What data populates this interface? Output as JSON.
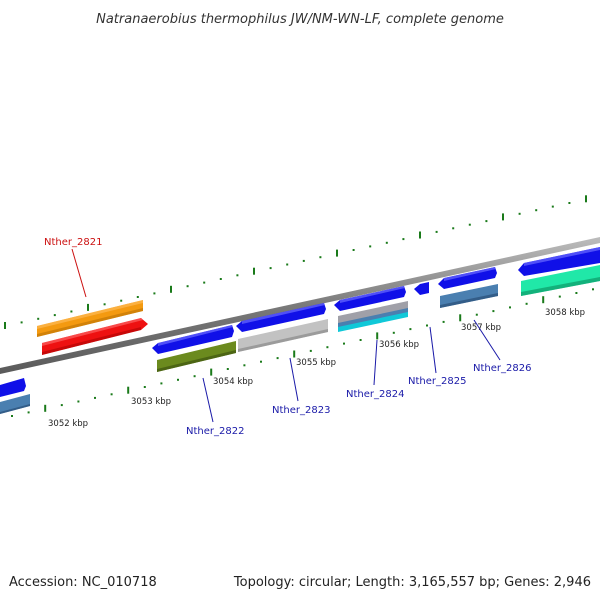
{
  "title": "Natranaerobius thermophilus JW/NM-WN-LF, complete genome",
  "footer": {
    "accession": "Accession: NC_010718",
    "summary": "Topology: circular; Length: 3,165,557 bp; Genes: 2,946"
  },
  "colors": {
    "backbone": "#8a8a8a",
    "tick": "#1a7a1a",
    "label_blue": "#1a1aa8",
    "label_red": "#cc1111",
    "gene_blue": "#1010e8",
    "gene_steel": "#4a7fb0",
    "gene_orange": "#f49a10",
    "gene_red": "#ee1111",
    "gene_olive": "#6b8a1e",
    "gene_gray": "#c2c2c2",
    "gene_cyan": "#10c8d8",
    "gene_teal": "#20e8a8"
  },
  "kbp_labels": [
    "3052 kbp",
    "3053 kbp",
    "3054 kbp",
    "3055 kbp",
    "3056 kbp",
    "3057 kbp",
    "3058 kbp"
  ],
  "gene_labels": [
    {
      "text": "Nther_2821",
      "color": "#cc1111"
    },
    {
      "text": "Nther_2822",
      "color": "#1a1aa8"
    },
    {
      "text": "Nther_2823",
      "color": "#1a1aa8"
    },
    {
      "text": "Nther_2824",
      "color": "#1a1aa8"
    },
    {
      "text": "Nther_2825",
      "color": "#1a1aa8"
    },
    {
      "text": "Nther_2826",
      "color": "#1a1aa8"
    }
  ]
}
